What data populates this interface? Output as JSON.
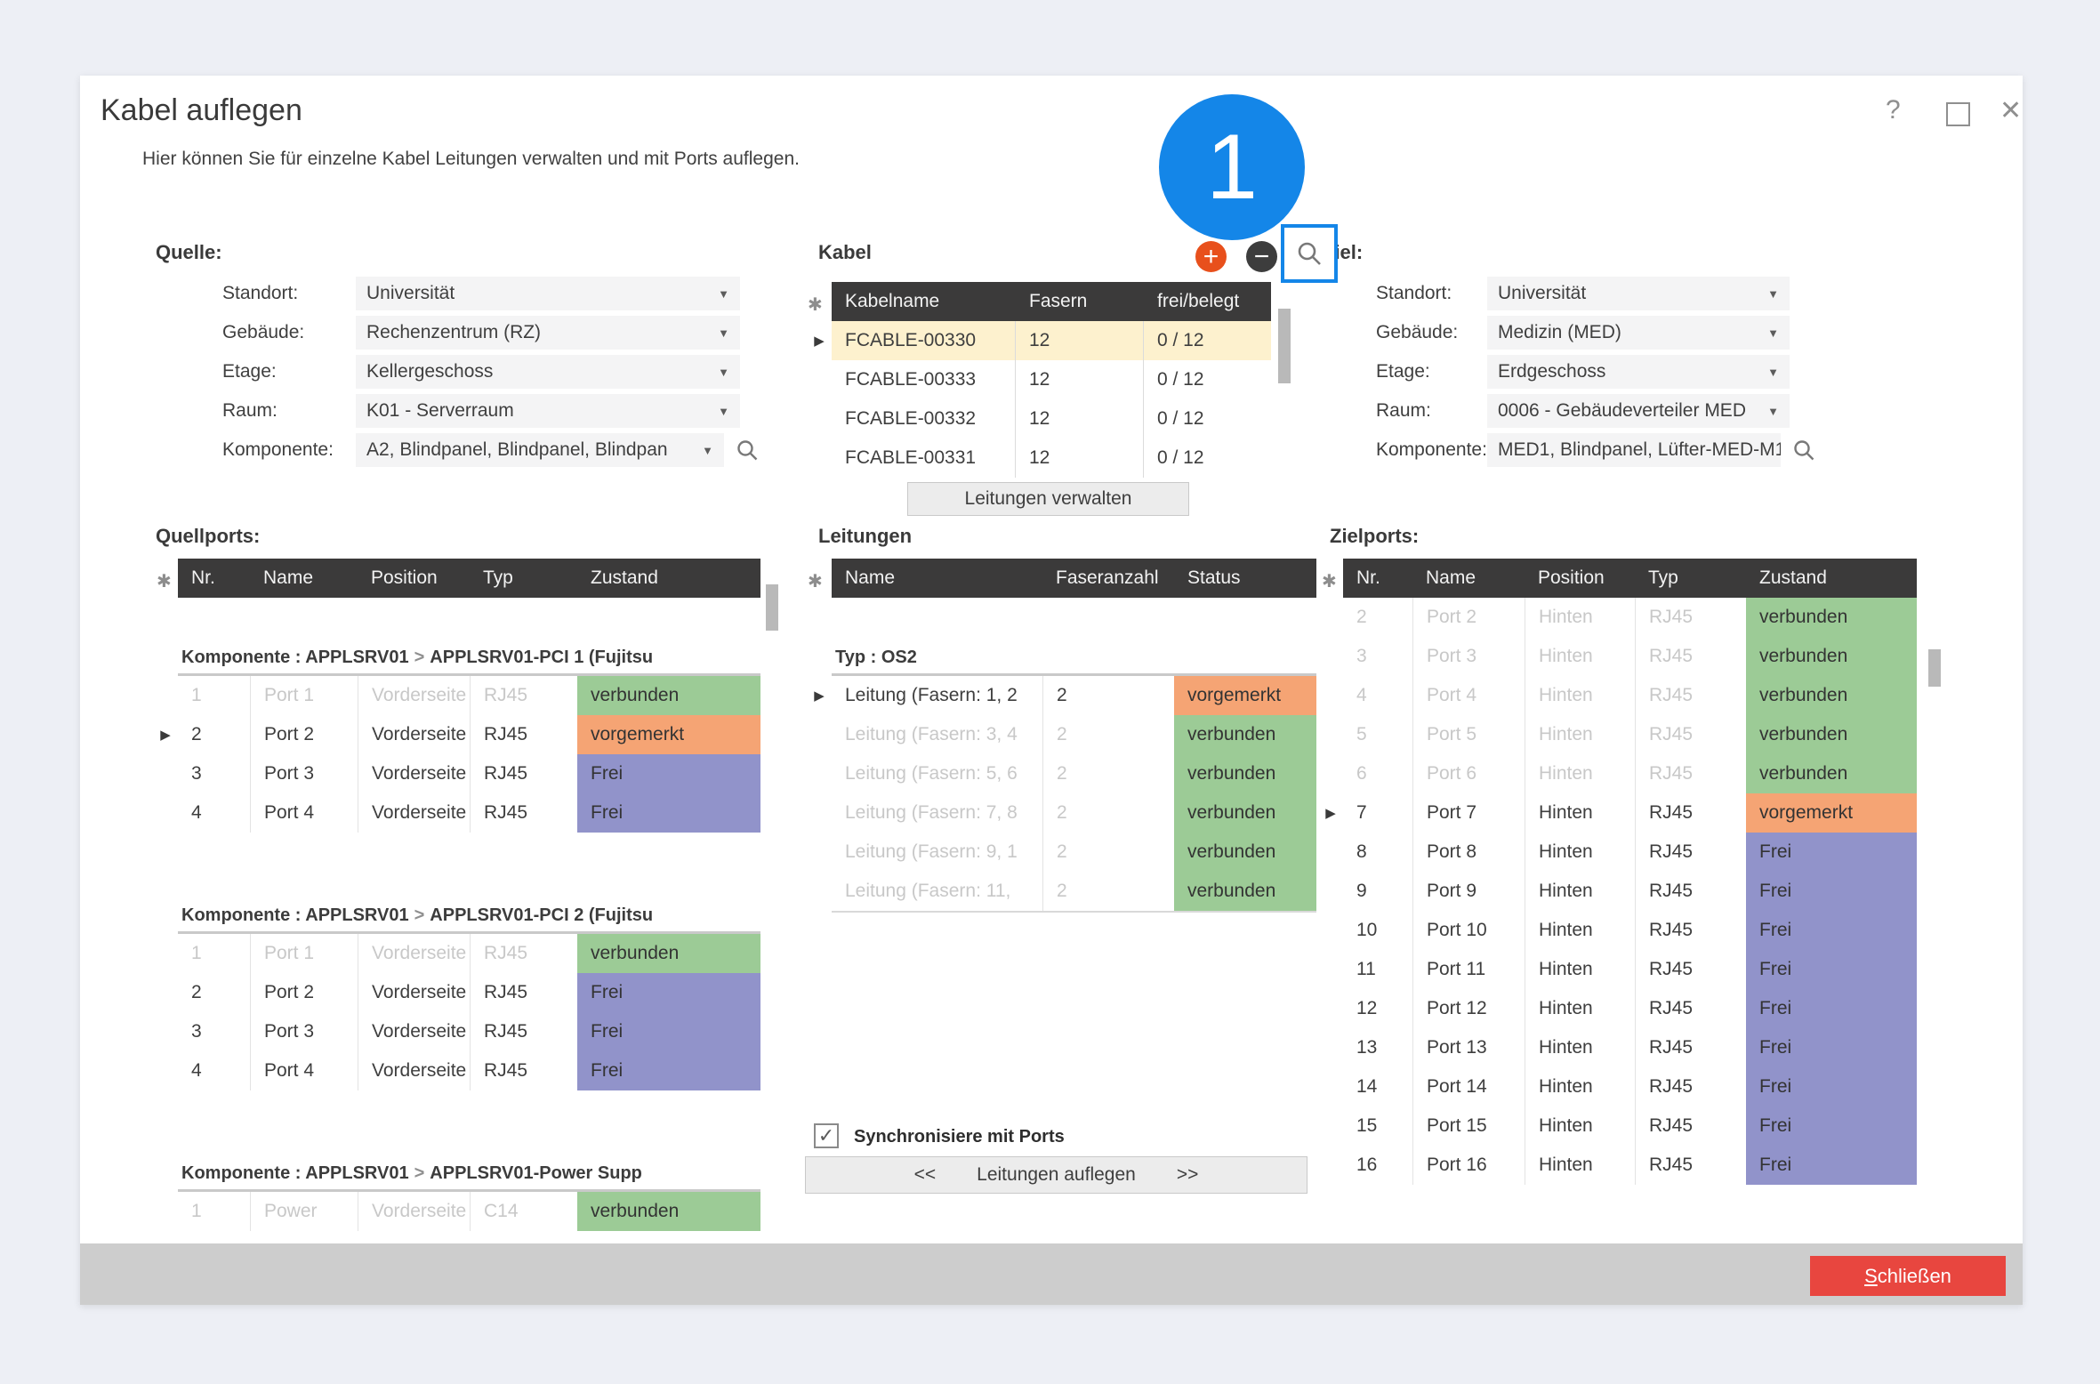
{
  "colors": {
    "accent_blue": "#1486e8",
    "table_header_bg": "#3b3a3a",
    "status_connected": "#9ccb96",
    "status_reserved": "#f5a474",
    "status_free": "#9193ca",
    "selected_row": "#fdf1ce",
    "close_button": "#e8463f",
    "add_icon": "#e8501c",
    "remove_icon": "#3d3d3d"
  },
  "icons": {
    "caret": "▼",
    "row_arrow": "▶",
    "asterisk": "✱",
    "check": "✓",
    "add": "+",
    "remove": "−",
    "help": "?",
    "close": "✕",
    "group_chevron": ">"
  },
  "annotation": {
    "number": "1"
  },
  "dialog": {
    "title": "Kabel auflegen",
    "subtitle": "Hier können Sie für einzelne Kabel Leitungen verwalten und mit Ports auflegen."
  },
  "quelle": {
    "heading": "Quelle:",
    "fields": [
      {
        "label": "Standort:",
        "value": "Universität",
        "has_search": false
      },
      {
        "label": "Gebäude:",
        "value": "Rechenzentrum (RZ)",
        "has_search": false
      },
      {
        "label": "Etage:",
        "value": "Kellergeschoss",
        "has_search": false
      },
      {
        "label": "Raum:",
        "value": "K01 - Serverraum",
        "has_search": false
      },
      {
        "label": "Komponente:",
        "value": "A2, Blindpanel, Blindpanel, Blindpan",
        "has_search": true
      }
    ]
  },
  "ziel": {
    "heading": "Ziel:",
    "fields": [
      {
        "label": "Standort:",
        "value": "Universität",
        "has_search": false
      },
      {
        "label": "Gebäude:",
        "value": "Medizin (MED)",
        "has_search": false
      },
      {
        "label": "Etage:",
        "value": "Erdgeschoss",
        "has_search": false
      },
      {
        "label": "Raum:",
        "value": "0006 - Gebäudeverteiler MED",
        "has_search": false
      },
      {
        "label": "Komponente:",
        "value": "MED1, Blindpanel, Lüfter-MED-M1,",
        "has_search": true
      }
    ]
  },
  "kabel": {
    "heading": "Kabel",
    "columns": [
      "Kabelname",
      "Fasern",
      "frei/belegt"
    ],
    "rows": [
      {
        "kabelname": "FCABLE-00330",
        "fasern": "12",
        "frei_belegt": "0 / 12",
        "selected": true
      },
      {
        "kabelname": "FCABLE-00333",
        "fasern": "12",
        "frei_belegt": "0 / 12",
        "selected": false
      },
      {
        "kabelname": "FCABLE-00332",
        "fasern": "12",
        "frei_belegt": "0 / 12",
        "selected": false
      },
      {
        "kabelname": "FCABLE-00331",
        "fasern": "12",
        "frei_belegt": "0 / 12",
        "selected": false
      }
    ],
    "manage_button": "Leitungen verwalten"
  },
  "quellports": {
    "heading": "Quellports:",
    "columns": [
      "Nr.",
      "Name",
      "Position",
      "Typ",
      "Zustand"
    ],
    "groups": [
      {
        "component": "Komponente : APPLSRV01",
        "target": "APPLSRV01-PCI 1 (Fujitsu",
        "rows": [
          {
            "nr": "1",
            "name": "Port 1",
            "position": "Vorderseite",
            "typ": "RJ45",
            "zustand": "verbunden",
            "state": "connected",
            "dimmed": true,
            "selected": false
          },
          {
            "nr": "2",
            "name": "Port 2",
            "position": "Vorderseite",
            "typ": "RJ45",
            "zustand": "vorgemerkt",
            "state": "reserved",
            "dimmed": false,
            "selected": true
          },
          {
            "nr": "3",
            "name": "Port 3",
            "position": "Vorderseite",
            "typ": "RJ45",
            "zustand": "Frei",
            "state": "free",
            "dimmed": false,
            "selected": false
          },
          {
            "nr": "4",
            "name": "Port 4",
            "position": "Vorderseite",
            "typ": "RJ45",
            "zustand": "Frei",
            "state": "free",
            "dimmed": false,
            "selected": false
          }
        ]
      },
      {
        "component": "Komponente : APPLSRV01",
        "target": "APPLSRV01-PCI 2 (Fujitsu",
        "rows": [
          {
            "nr": "1",
            "name": "Port 1",
            "position": "Vorderseite",
            "typ": "RJ45",
            "zustand": "verbunden",
            "state": "connected",
            "dimmed": true,
            "selected": false
          },
          {
            "nr": "2",
            "name": "Port 2",
            "position": "Vorderseite",
            "typ": "RJ45",
            "zustand": "Frei",
            "state": "free",
            "dimmed": false,
            "selected": false
          },
          {
            "nr": "3",
            "name": "Port 3",
            "position": "Vorderseite",
            "typ": "RJ45",
            "zustand": "Frei",
            "state": "free",
            "dimmed": false,
            "selected": false
          },
          {
            "nr": "4",
            "name": "Port 4",
            "position": "Vorderseite",
            "typ": "RJ45",
            "zustand": "Frei",
            "state": "free",
            "dimmed": false,
            "selected": false
          }
        ]
      },
      {
        "component": "Komponente : APPLSRV01",
        "target": "APPLSRV01-Power Supp",
        "rows": [
          {
            "nr": "1",
            "name": "Power",
            "position": "Vorderseite",
            "typ": "C14",
            "zustand": "verbunden",
            "state": "connected",
            "dimmed": true,
            "selected": false
          }
        ]
      }
    ]
  },
  "leitungen": {
    "heading": "Leitungen",
    "columns": [
      "Name",
      "Faseranzahl",
      "Status"
    ],
    "group": "Typ : OS2",
    "rows": [
      {
        "name": "Leitung (Fasern: 1, 2",
        "faseranzahl": "2",
        "status": "vorgemerkt",
        "state": "reserved",
        "dimmed": false,
        "selected": true
      },
      {
        "name": "Leitung (Fasern: 3, 4",
        "faseranzahl": "2",
        "status": "verbunden",
        "state": "connected",
        "dimmed": true,
        "selected": false
      },
      {
        "name": "Leitung (Fasern: 5, 6",
        "faseranzahl": "2",
        "status": "verbunden",
        "state": "connected",
        "dimmed": true,
        "selected": false
      },
      {
        "name": "Leitung (Fasern: 7, 8",
        "faseranzahl": "2",
        "status": "verbunden",
        "state": "connected",
        "dimmed": true,
        "selected": false
      },
      {
        "name": "Leitung (Fasern: 9, 1",
        "faseranzahl": "2",
        "status": "verbunden",
        "state": "connected",
        "dimmed": true,
        "selected": false
      },
      {
        "name": "Leitung (Fasern: 11,",
        "faseranzahl": "2",
        "status": "verbunden",
        "state": "connected",
        "dimmed": true,
        "selected": false
      }
    ],
    "sync_checkbox": {
      "checked": true,
      "label": "Synchronisiere mit Ports"
    },
    "apply_button": {
      "left": "<<",
      "label": "Leitungen auflegen",
      "right": ">>"
    }
  },
  "zielports": {
    "heading": "Zielports:",
    "columns": [
      "Nr.",
      "Name",
      "Position",
      "Typ",
      "Zustand"
    ],
    "rows": [
      {
        "nr": "2",
        "name": "Port 2",
        "position": "Hinten",
        "typ": "RJ45",
        "zustand": "verbunden",
        "state": "connected",
        "dimmed": true,
        "selected": false
      },
      {
        "nr": "3",
        "name": "Port 3",
        "position": "Hinten",
        "typ": "RJ45",
        "zustand": "verbunden",
        "state": "connected",
        "dimmed": true,
        "selected": false
      },
      {
        "nr": "4",
        "name": "Port 4",
        "position": "Hinten",
        "typ": "RJ45",
        "zustand": "verbunden",
        "state": "connected",
        "dimmed": true,
        "selected": false
      },
      {
        "nr": "5",
        "name": "Port 5",
        "position": "Hinten",
        "typ": "RJ45",
        "zustand": "verbunden",
        "state": "connected",
        "dimmed": true,
        "selected": false
      },
      {
        "nr": "6",
        "name": "Port 6",
        "position": "Hinten",
        "typ": "RJ45",
        "zustand": "verbunden",
        "state": "connected",
        "dimmed": true,
        "selected": false
      },
      {
        "nr": "7",
        "name": "Port 7",
        "position": "Hinten",
        "typ": "RJ45",
        "zustand": "vorgemerkt",
        "state": "reserved",
        "dimmed": false,
        "selected": true
      },
      {
        "nr": "8",
        "name": "Port 8",
        "position": "Hinten",
        "typ": "RJ45",
        "zustand": "Frei",
        "state": "free",
        "dimmed": false,
        "selected": false
      },
      {
        "nr": "9",
        "name": "Port 9",
        "position": "Hinten",
        "typ": "RJ45",
        "zustand": "Frei",
        "state": "free",
        "dimmed": false,
        "selected": false
      },
      {
        "nr": "10",
        "name": "Port 10",
        "position": "Hinten",
        "typ": "RJ45",
        "zustand": "Frei",
        "state": "free",
        "dimmed": false,
        "selected": false
      },
      {
        "nr": "11",
        "name": "Port 11",
        "position": "Hinten",
        "typ": "RJ45",
        "zustand": "Frei",
        "state": "free",
        "dimmed": false,
        "selected": false
      },
      {
        "nr": "12",
        "name": "Port 12",
        "position": "Hinten",
        "typ": "RJ45",
        "zustand": "Frei",
        "state": "free",
        "dimmed": false,
        "selected": false
      },
      {
        "nr": "13",
        "name": "Port 13",
        "position": "Hinten",
        "typ": "RJ45",
        "zustand": "Frei",
        "state": "free",
        "dimmed": false,
        "selected": false
      },
      {
        "nr": "14",
        "name": "Port 14",
        "position": "Hinten",
        "typ": "RJ45",
        "zustand": "Frei",
        "state": "free",
        "dimmed": false,
        "selected": false
      },
      {
        "nr": "15",
        "name": "Port 15",
        "position": "Hinten",
        "typ": "RJ45",
        "zustand": "Frei",
        "state": "free",
        "dimmed": false,
        "selected": false
      },
      {
        "nr": "16",
        "name": "Port 16",
        "position": "Hinten",
        "typ": "RJ45",
        "zustand": "Frei",
        "state": "free",
        "dimmed": false,
        "selected": false
      }
    ]
  },
  "footer": {
    "close_button": "Schließen"
  }
}
